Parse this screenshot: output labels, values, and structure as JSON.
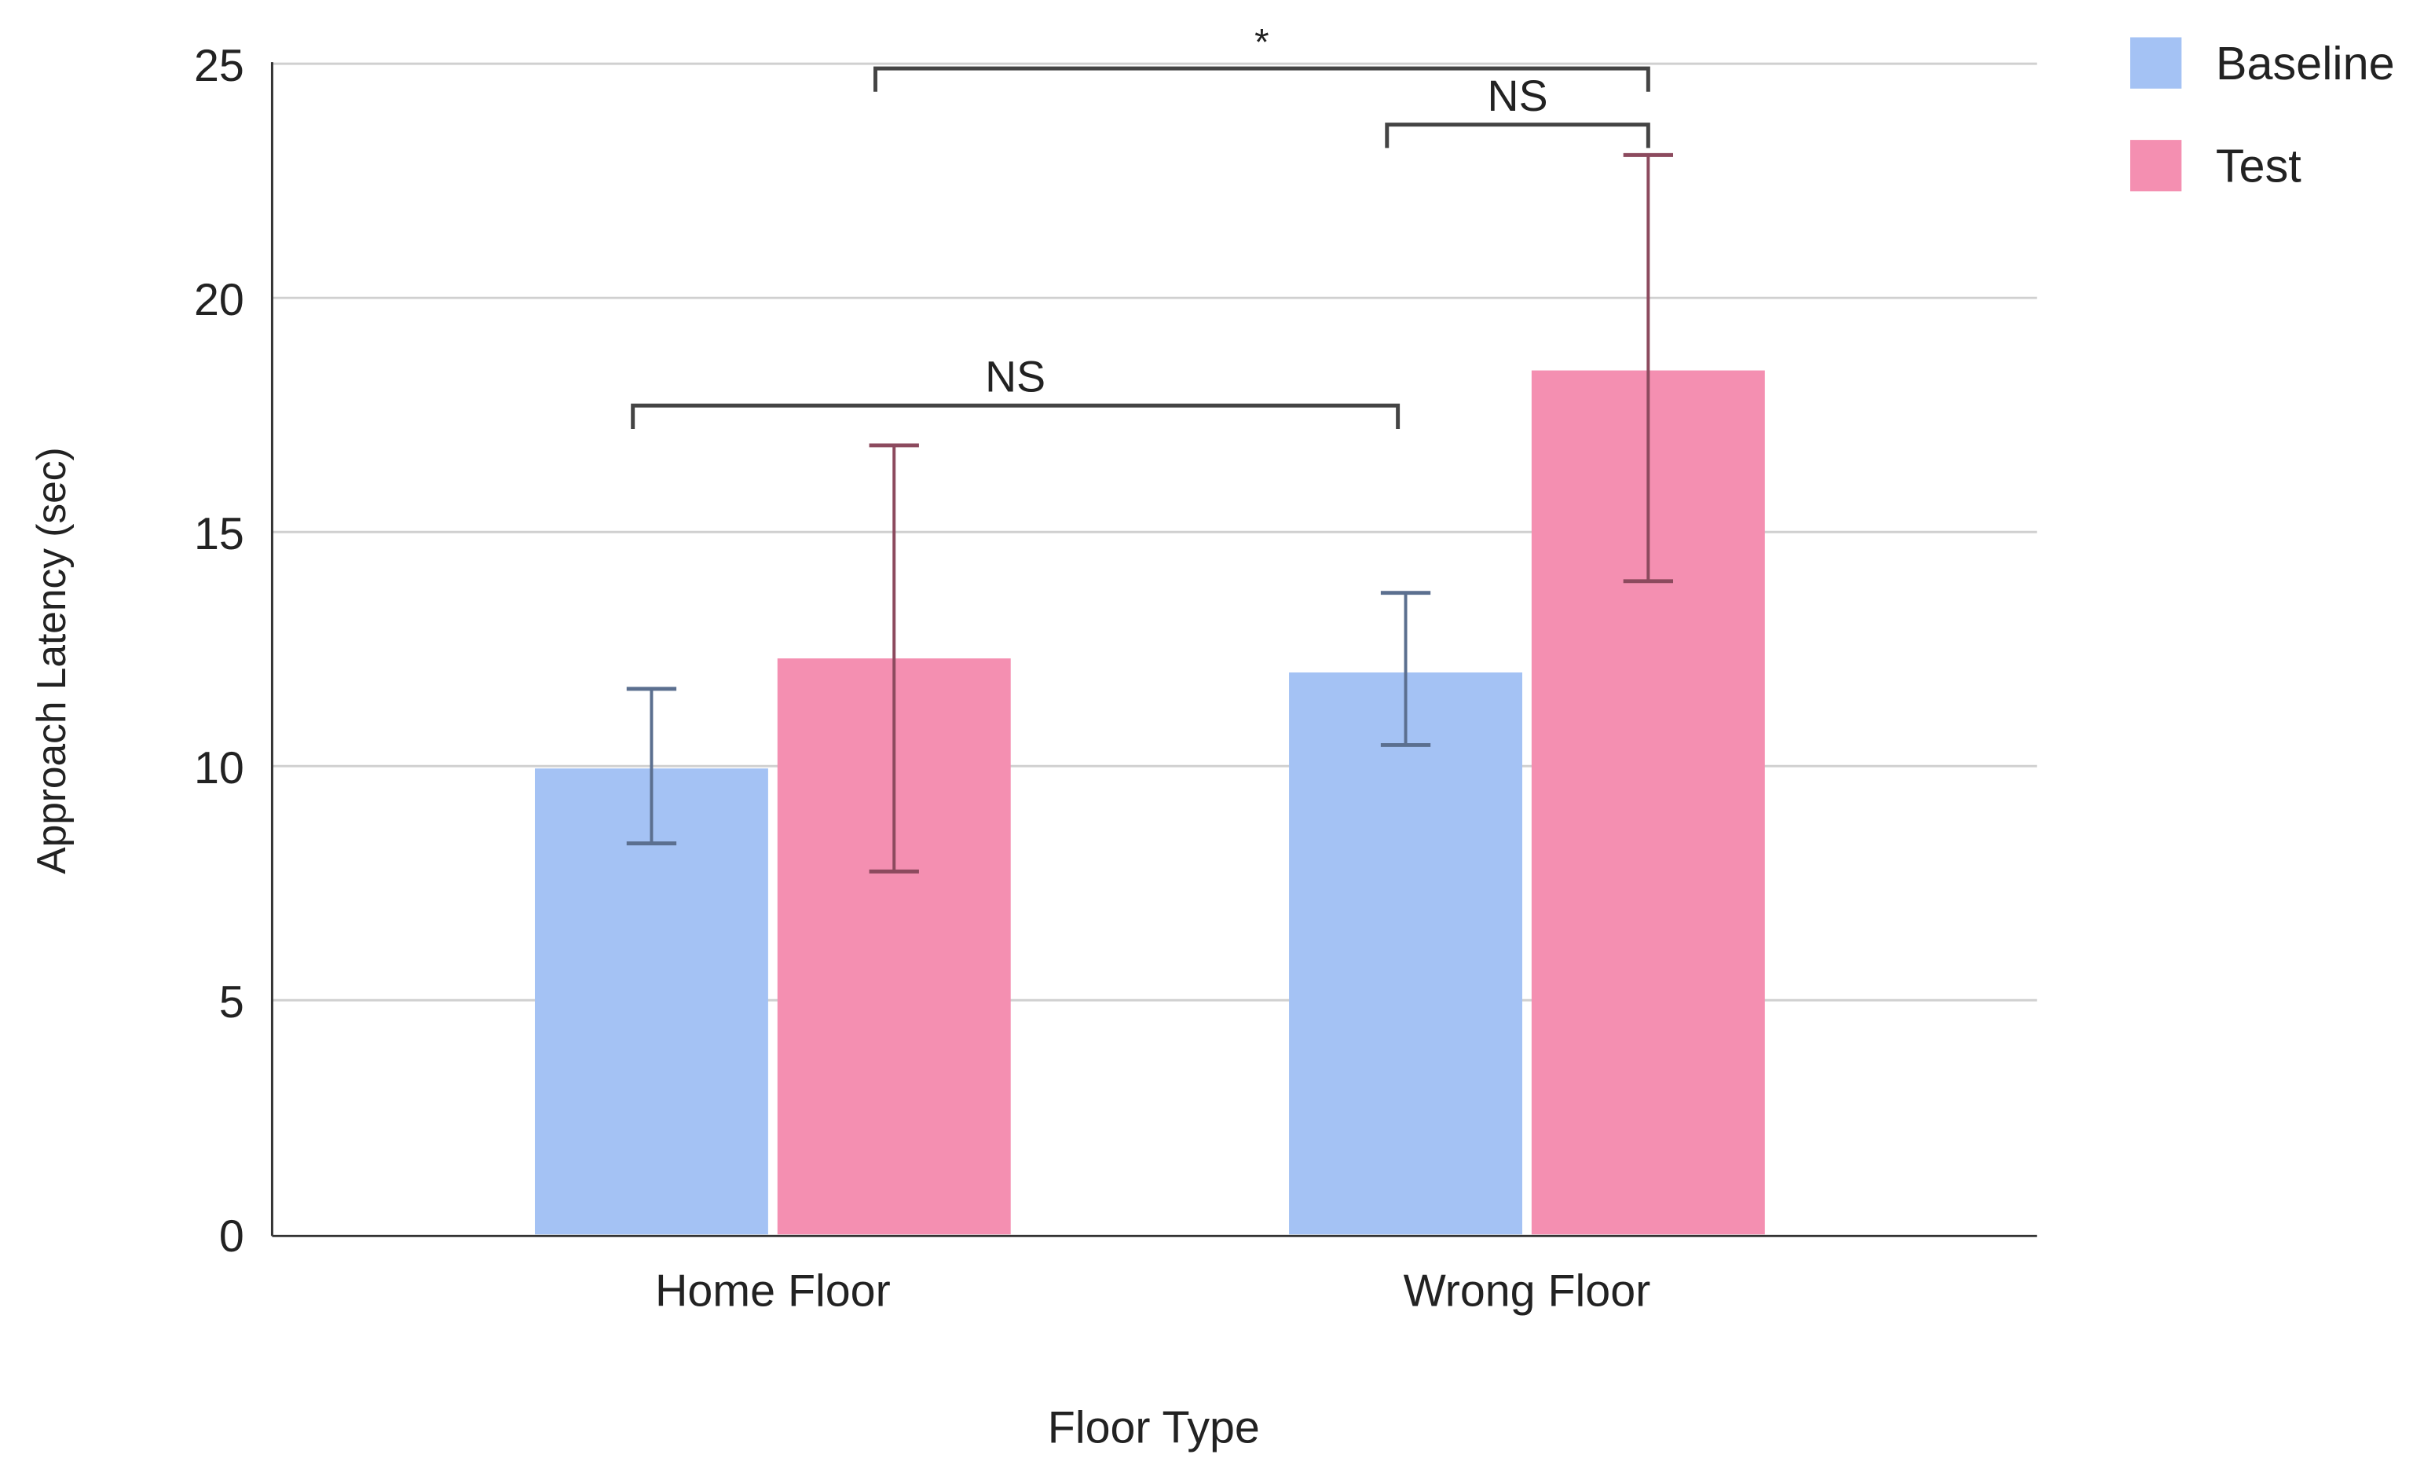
{
  "chart_data": {
    "type": "bar",
    "title": "",
    "xlabel": "Floor Type",
    "ylabel": "Approach Latency (sec)",
    "ylim": [
      0,
      25
    ],
    "yticks": [
      "0",
      "5",
      "10",
      "15",
      "20",
      "25"
    ],
    "grid": true,
    "legend": "top-right",
    "categories": [
      "Home Floor",
      "Wrong Floor"
    ],
    "series": [
      {
        "name": "Baseline",
        "color": "#a4c2f4",
        "errcolor": "#5b6f8f",
        "values": [
          9.95,
          12.0
        ],
        "err_low": [
          8.35,
          10.45
        ],
        "err_high": [
          11.65,
          13.7
        ]
      },
      {
        "name": "Test",
        "color": "#f48fb1",
        "errcolor": "#8c4a5e",
        "values": [
          12.3,
          18.45
        ],
        "err_low": [
          7.75,
          13.95
        ],
        "err_high": [
          16.85,
          23.05
        ]
      }
    ],
    "annotations": [
      {
        "label": "NS",
        "from": "Home Floor Baseline",
        "to": "Wrong Floor Baseline",
        "y": 17.7
      },
      {
        "label": "NS",
        "from": "Wrong Floor Baseline",
        "to": "Wrong Floor Test",
        "y": 23.7
      },
      {
        "label": "*",
        "from": "Home Floor Test",
        "to": "Wrong Floor Test",
        "y": 24.9
      }
    ]
  }
}
